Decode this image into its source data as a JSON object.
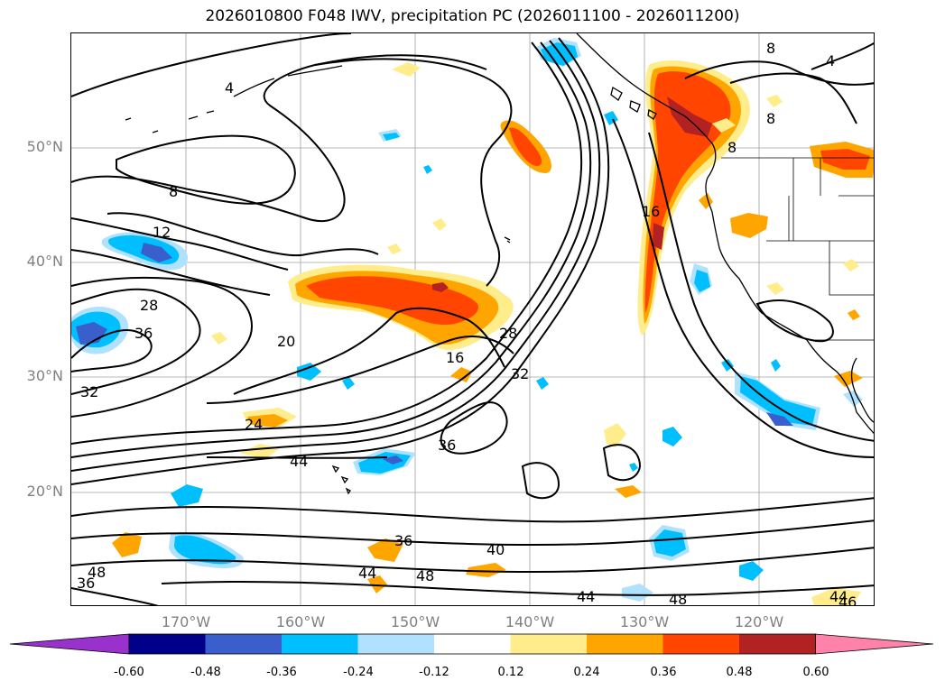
{
  "title": "2026010800 F048 IWV, precipitation PC (2026011100 - 2026011200)",
  "lat_labels": [
    "50°N",
    "40°N",
    "30°N",
    "20°N"
  ],
  "lon_labels": [
    "170°W",
    "160°W",
    "150°W",
    "140°W",
    "130°W",
    "120°W"
  ],
  "contour_labels": [
    "4",
    "8",
    "8",
    "12",
    "16",
    "16",
    "20",
    "24",
    "28",
    "28",
    "32",
    "32",
    "36",
    "36",
    "36",
    "36",
    "40",
    "44",
    "44",
    "44",
    "44",
    "46",
    "48",
    "48",
    "48",
    "8",
    "4",
    "8"
  ],
  "colorbar": {
    "ticks": [
      "-0.60",
      "-0.48",
      "-0.36",
      "-0.24",
      "-0.12",
      "0.12",
      "0.24",
      "0.36",
      "0.48",
      "0.60"
    ],
    "colors": [
      "#9932CC",
      "#00008B",
      "#3A5FCD",
      "#00BFFF",
      "#B0E2FF",
      "#FFFFFF",
      "#FFEC8B",
      "#FFA500",
      "#FF4500",
      "#B22222",
      "#FF82AB"
    ]
  }
}
